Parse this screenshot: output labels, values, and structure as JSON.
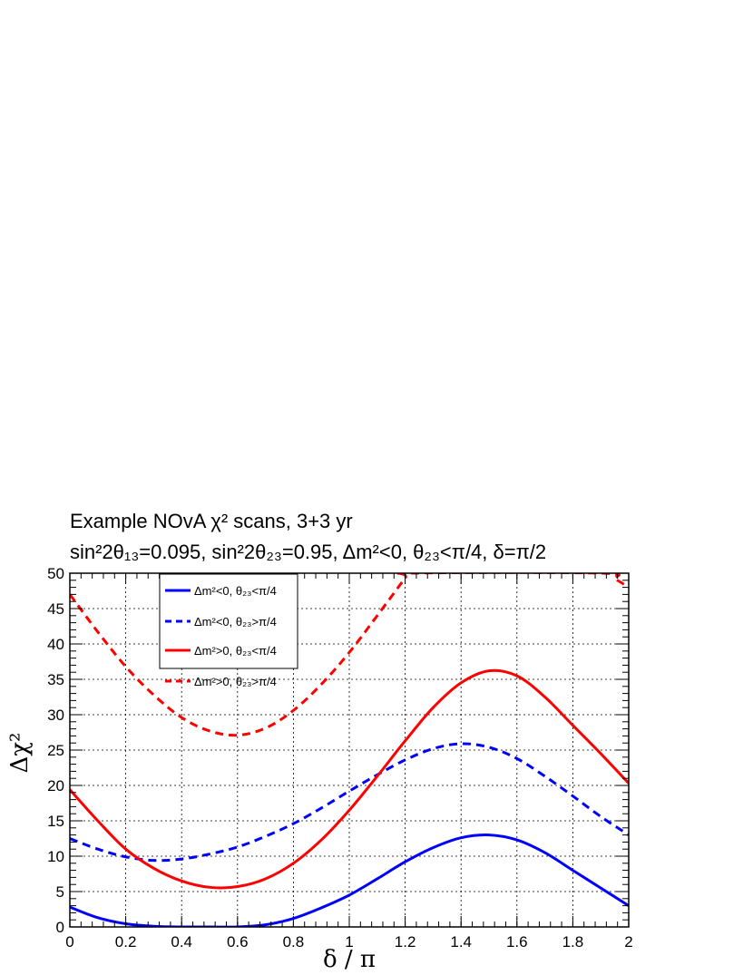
{
  "chart_data": {
    "type": "line",
    "title_line1": "Example NOvA χ² scans, 3+3 yr",
    "title_line2": "sin²2θ₁₃=0.095, sin²2θ₂₃=0.95, Δm²<0, θ₂₃<π/4, δ=π/2",
    "xlabel": "δ / π",
    "ylabel": "Δχ²",
    "xlim": [
      0,
      2
    ],
    "ylim": [
      0,
      50
    ],
    "xticks": [
      "0",
      "0.2",
      "0.4",
      "0.6",
      "0.8",
      "1",
      "1.2",
      "1.4",
      "1.6",
      "1.8",
      "2"
    ],
    "yticks": [
      "0",
      "5",
      "10",
      "15",
      "20",
      "25",
      "30",
      "35",
      "40",
      "45",
      "50"
    ],
    "grid": true,
    "legend_position": "top-left",
    "series": [
      {
        "name": "Δm²<0, θ₂₃<π/4",
        "color": "#0000ff",
        "style": "solid",
        "x": [
          0,
          0.1,
          0.2,
          0.3,
          0.4,
          0.5,
          0.6,
          0.7,
          0.8,
          0.9,
          1.0,
          1.1,
          1.2,
          1.3,
          1.4,
          1.5,
          1.6,
          1.7,
          1.8,
          1.9,
          2.0
        ],
        "y": [
          2.8,
          1.3,
          0.45,
          0.1,
          0.0,
          0.0,
          0.0,
          0.3,
          1.2,
          2.7,
          4.5,
          6.8,
          9.2,
          11.2,
          12.6,
          13.0,
          12.3,
          10.5,
          8.0,
          5.5,
          3.0
        ]
      },
      {
        "name": "Δm²<0, θ₂₃>π/4",
        "color": "#0000ff",
        "style": "dashed",
        "x": [
          0,
          0.1,
          0.2,
          0.3,
          0.4,
          0.5,
          0.6,
          0.7,
          0.8,
          0.9,
          1.0,
          1.1,
          1.2,
          1.3,
          1.4,
          1.5,
          1.6,
          1.7,
          1.8,
          1.9,
          2.0
        ],
        "y": [
          12.5,
          11.0,
          9.9,
          9.4,
          9.6,
          10.3,
          11.3,
          12.8,
          14.6,
          16.8,
          19.2,
          21.5,
          23.6,
          25.2,
          25.9,
          25.4,
          23.8,
          21.3,
          18.5,
          15.6,
          13.0
        ]
      },
      {
        "name": "Δm²>0, θ₂₃<π/4",
        "color": "#ff0000",
        "style": "solid",
        "x": [
          0,
          0.1,
          0.2,
          0.3,
          0.4,
          0.5,
          0.6,
          0.7,
          0.8,
          0.9,
          1.0,
          1.1,
          1.2,
          1.3,
          1.4,
          1.5,
          1.6,
          1.7,
          1.8,
          1.9,
          2.0
        ],
        "y": [
          19.4,
          15.0,
          11.0,
          8.3,
          6.5,
          5.6,
          5.7,
          6.8,
          9.0,
          12.3,
          16.5,
          21.3,
          26.3,
          31.0,
          34.5,
          36.2,
          35.5,
          32.5,
          28.5,
          24.5,
          20.3
        ]
      },
      {
        "name": "Δm²>0, θ₂₃>π/4",
        "color": "#ff0000",
        "style": "dashed",
        "x": [
          0,
          0.1,
          0.2,
          0.3,
          0.4,
          0.5,
          0.6,
          0.7,
          0.8,
          0.9,
          1.0,
          1.1,
          1.2,
          1.22,
          1.9,
          1.95,
          2.0
        ],
        "y": [
          47.0,
          41.7,
          36.8,
          32.8,
          29.6,
          27.7,
          27.1,
          28.1,
          30.6,
          34.3,
          38.8,
          44.0,
          49.3,
          50.0,
          50.0,
          49.2,
          48.0
        ]
      }
    ]
  }
}
